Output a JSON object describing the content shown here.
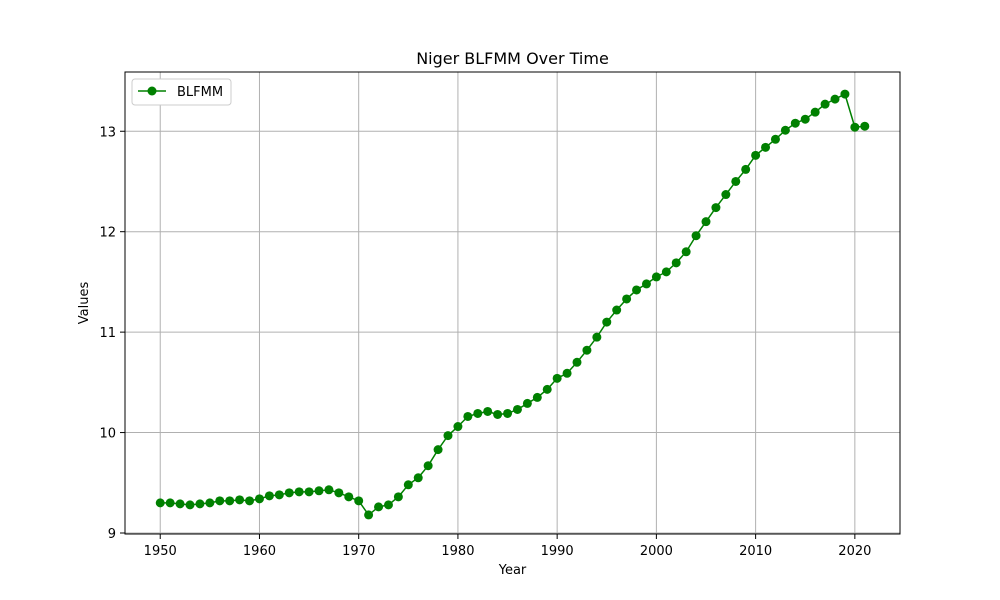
{
  "chart_data": {
    "type": "line",
    "title": "Niger BLFMM Over Time",
    "xlabel": "Year",
    "ylabel": "Values",
    "xlim": [
      1946.45,
      2024.55
    ],
    "ylim": [
      8.99,
      13.59
    ],
    "xticks": [
      1950,
      1960,
      1970,
      1980,
      1990,
      2000,
      2010,
      2020
    ],
    "yticks": [
      9,
      10,
      11,
      12,
      13
    ],
    "grid": true,
    "legend_position": "top-left",
    "series": [
      {
        "name": "BLFMM",
        "color": "#008000",
        "marker": "circle",
        "x": [
          1950,
          1951,
          1952,
          1953,
          1954,
          1955,
          1956,
          1957,
          1958,
          1959,
          1960,
          1961,
          1962,
          1963,
          1964,
          1965,
          1966,
          1967,
          1968,
          1969,
          1970,
          1971,
          1972,
          1973,
          1974,
          1975,
          1976,
          1977,
          1978,
          1979,
          1980,
          1981,
          1982,
          1983,
          1984,
          1985,
          1986,
          1987,
          1988,
          1989,
          1990,
          1991,
          1992,
          1993,
          1994,
          1995,
          1996,
          1997,
          1998,
          1999,
          2000,
          2001,
          2002,
          2003,
          2004,
          2005,
          2006,
          2007,
          2008,
          2009,
          2010,
          2011,
          2012,
          2013,
          2014,
          2015,
          2016,
          2017,
          2018,
          2019,
          2020,
          2021
        ],
        "values": [
          9.3,
          9.3,
          9.29,
          9.28,
          9.29,
          9.3,
          9.32,
          9.32,
          9.33,
          9.32,
          9.34,
          9.37,
          9.38,
          9.4,
          9.41,
          9.41,
          9.42,
          9.43,
          9.4,
          9.36,
          9.32,
          9.18,
          9.26,
          9.28,
          9.36,
          9.48,
          9.55,
          9.67,
          9.83,
          9.97,
          10.06,
          10.16,
          10.19,
          10.21,
          10.18,
          10.19,
          10.23,
          10.29,
          10.35,
          10.43,
          10.54,
          10.59,
          10.7,
          10.82,
          10.95,
          11.1,
          11.22,
          11.33,
          11.42,
          11.48,
          11.55,
          11.6,
          11.69,
          11.8,
          11.96,
          12.1,
          12.24,
          12.37,
          12.5,
          12.62,
          12.76,
          12.84,
          12.92,
          13.01,
          13.08,
          13.12,
          13.19,
          13.27,
          13.32,
          13.37,
          13.04,
          13.05
        ]
      }
    ]
  }
}
